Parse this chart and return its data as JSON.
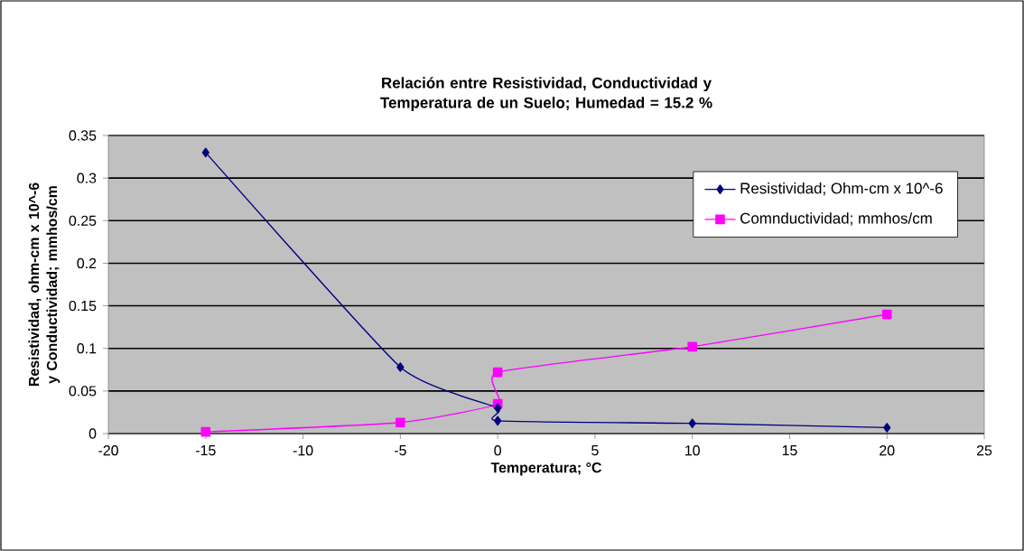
{
  "chart_data": {
    "type": "line",
    "title": "Relación entre Resistividad, Conductividad y Temperatura de un Suelo; Humedad = 15.2 %",
    "xlabel": "Temperatura; °C",
    "ylabel": "Resistividad, ohm-cm x 10^-6 y Conductividad; mmhos/cm",
    "xlim": [
      -20,
      25
    ],
    "xticks": [
      -20,
      -15,
      -10,
      -5,
      0,
      5,
      10,
      15,
      20,
      25
    ],
    "ylim": [
      0,
      0.35
    ],
    "yticks": [
      0,
      0.05,
      0.1,
      0.15,
      0.2,
      0.25,
      0.3,
      0.35
    ],
    "grid": "y",
    "legend": "top right",
    "line_style": "solid",
    "series": [
      {
        "name": "Resistividad; Ohm-cm x 10^-6",
        "color": "#000080",
        "marker": "diamond",
        "x": [
          -15,
          -5,
          0,
          0,
          10,
          20
        ],
        "values": [
          0.33,
          0.078,
          0.03,
          0.015,
          0.012,
          0.007
        ]
      },
      {
        "name": "Comnductividad; mmhos/cm",
        "color": "#ff00ff",
        "marker": "square",
        "x": [
          -15,
          -5,
          0,
          0,
          10,
          20
        ],
        "values": [
          0.002,
          0.013,
          0.035,
          0.072,
          0.102,
          0.14
        ]
      }
    ]
  }
}
